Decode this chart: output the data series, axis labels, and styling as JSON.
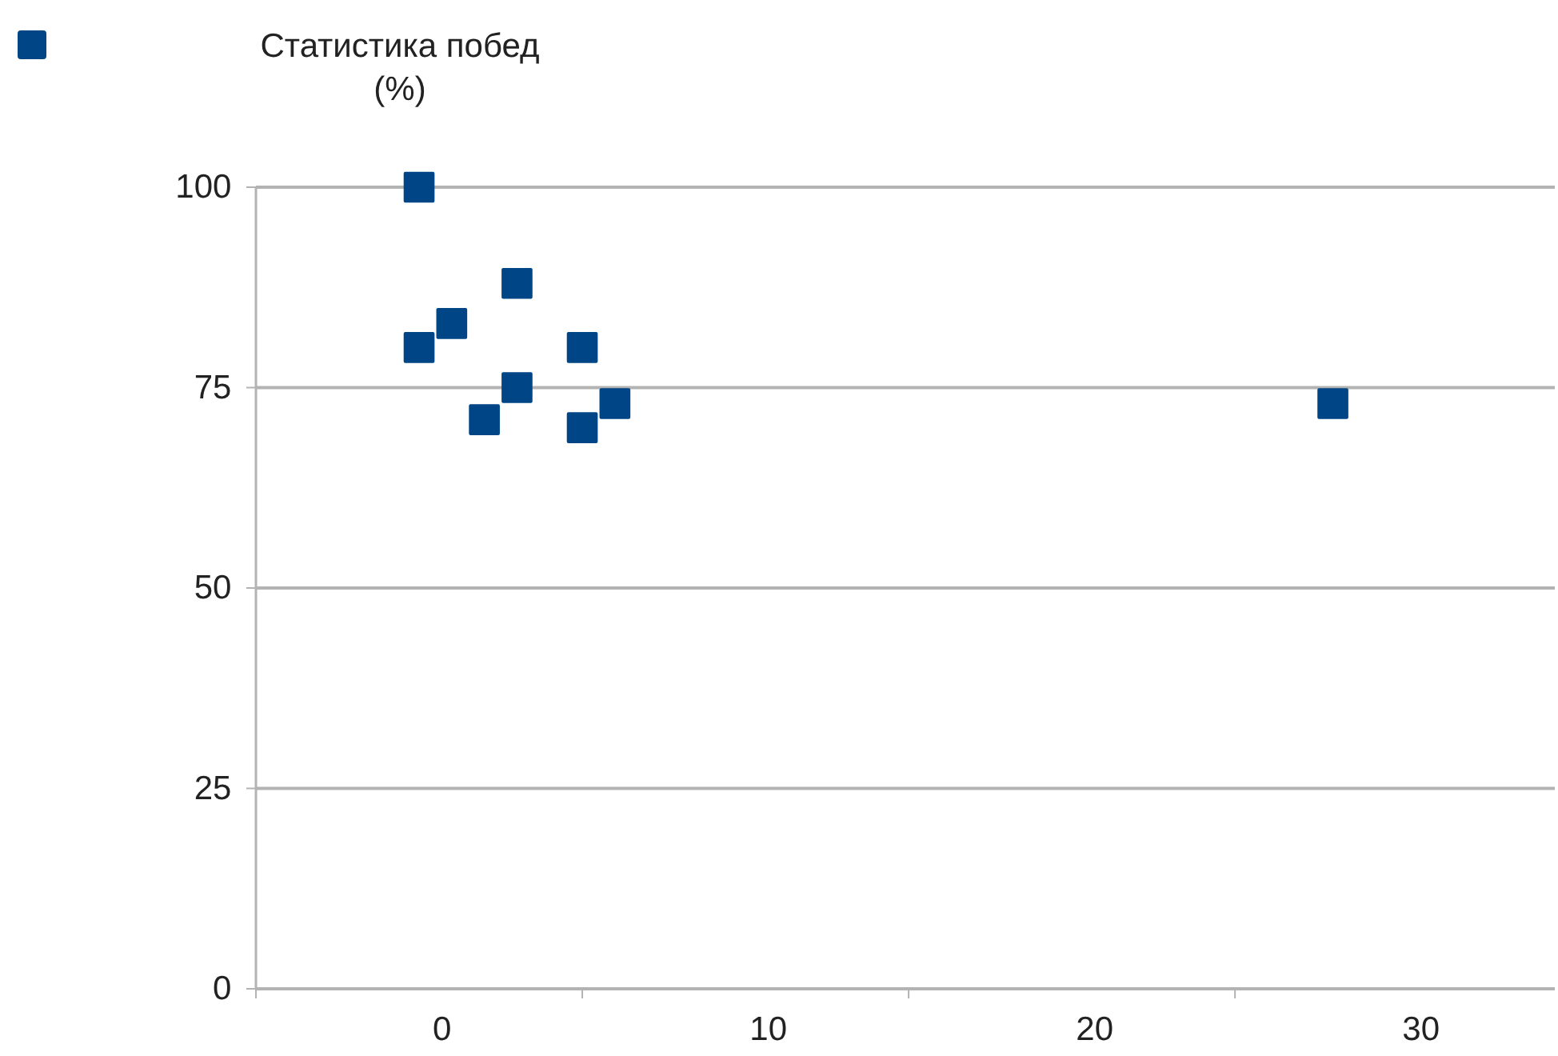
{
  "chart_data": {
    "type": "scatter",
    "marker": "square",
    "legend": "top left",
    "grid": "y",
    "xlim": [
      -5.7,
      34.1
    ],
    "xticks": [
      {
        "value": -5.7,
        "label": null
      },
      0,
      {
        "value": 4.3,
        "label": null
      },
      10,
      {
        "value": 14.3,
        "label": null
      },
      20,
      {
        "value": 24.3,
        "label": null
      },
      30
    ],
    "ylim": [
      0,
      100
    ],
    "yticks": [
      0,
      25,
      50,
      75,
      100
    ],
    "series": [
      {
        "name": "Статистика побед (%)",
        "color": "#004586",
        "x": [
          -0.7,
          -0.7,
          0.3,
          1.3,
          2.3,
          2.3,
          4.3,
          4.3,
          5.3,
          27.3
        ],
        "values": [
          100,
          80,
          83,
          71,
          88,
          75,
          80,
          70,
          73,
          73
        ]
      }
    ]
  }
}
